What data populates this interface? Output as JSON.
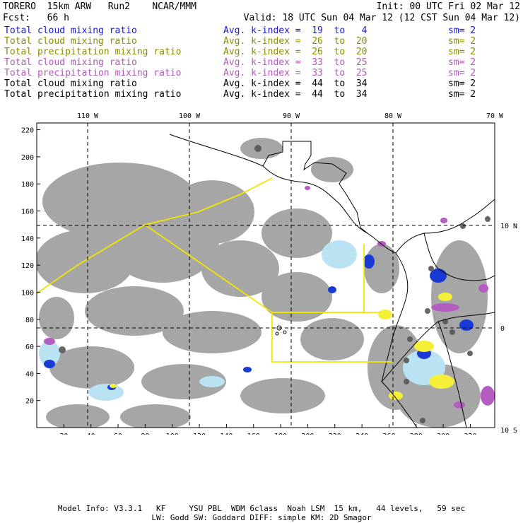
{
  "header": {
    "model_line": "TORERO  15km ARW   Run2    NCAR/MMM",
    "fcst_line": "Fcst:   66 h",
    "init": "Init: 00 UTC Fri 02 Mar 12",
    "valid": "Valid: 18 UTC Sun 04 Mar 12 (12 CST Sun 04 Mar 12)"
  },
  "legend": [
    {
      "name": "Total cloud mixing ratio",
      "avg": "Avg. k-index =  19  to   4",
      "sm": "sm= 2",
      "color": "#1a1acc"
    },
    {
      "name": "Total cloud mixing ratio",
      "avg": "Avg. k-index =  26  to  20",
      "sm": "sm= 2",
      "color": "#8c8c00"
    },
    {
      "name": "Total precipitation mixing ratio",
      "avg": "Avg. k-index =  26  to  20",
      "sm": "sm= 2",
      "color": "#8c8c00"
    },
    {
      "name": "Total cloud mixing ratio",
      "avg": "Avg. k-index =  33  to  25",
      "sm": "sm= 2",
      "color": "#b05ab8"
    },
    {
      "name": "Total precipitation mixing ratio",
      "avg": "Avg. k-index =  33  to  25",
      "sm": "sm= 2",
      "color": "#b05ab8"
    },
    {
      "name": "Total cloud mixing ratio",
      "avg": "Avg. k-index =  44  to  34",
      "sm": "sm= 2",
      "color": "#000000"
    },
    {
      "name": "Total precipitation mixing ratio",
      "avg": "Avg. k-index =  44  to  34",
      "sm": "sm= 2",
      "color": "#000000"
    }
  ],
  "map": {
    "lon_labels": [
      "110 W",
      "100 W",
      "90 W",
      "80 W",
      "70 W"
    ],
    "lat_labels": [
      "10 N",
      "0",
      "10 S"
    ],
    "y_ticks": [
      "220",
      "200",
      "180",
      "160",
      "140",
      "120",
      "100",
      "80",
      "60",
      "40",
      "20"
    ],
    "x_ticks": [
      "20",
      "40",
      "60",
      "80",
      "100",
      "120",
      "140",
      "160",
      "180",
      "200",
      "220",
      "240",
      "260",
      "280",
      "300",
      "320"
    ],
    "colors": {
      "cloud_gray": "#a6a6a6",
      "dark_gray": "#555555",
      "blue": "#1a3ad6",
      "light_blue": "#b9e3f2",
      "yellow": "#f5ef3a",
      "purple": "#b45cbf",
      "flight_track": "#f2e600",
      "coast": "#000000"
    }
  },
  "footer": {
    "line1": "Model Info: V3.3.1   KF     YSU PBL  WDM 6class  Noah LSM  15 km,   44 levels,   59 sec",
    "line2": "LW: Godd SW: Goddard DIFF: simple KM: 2D Smagor"
  }
}
